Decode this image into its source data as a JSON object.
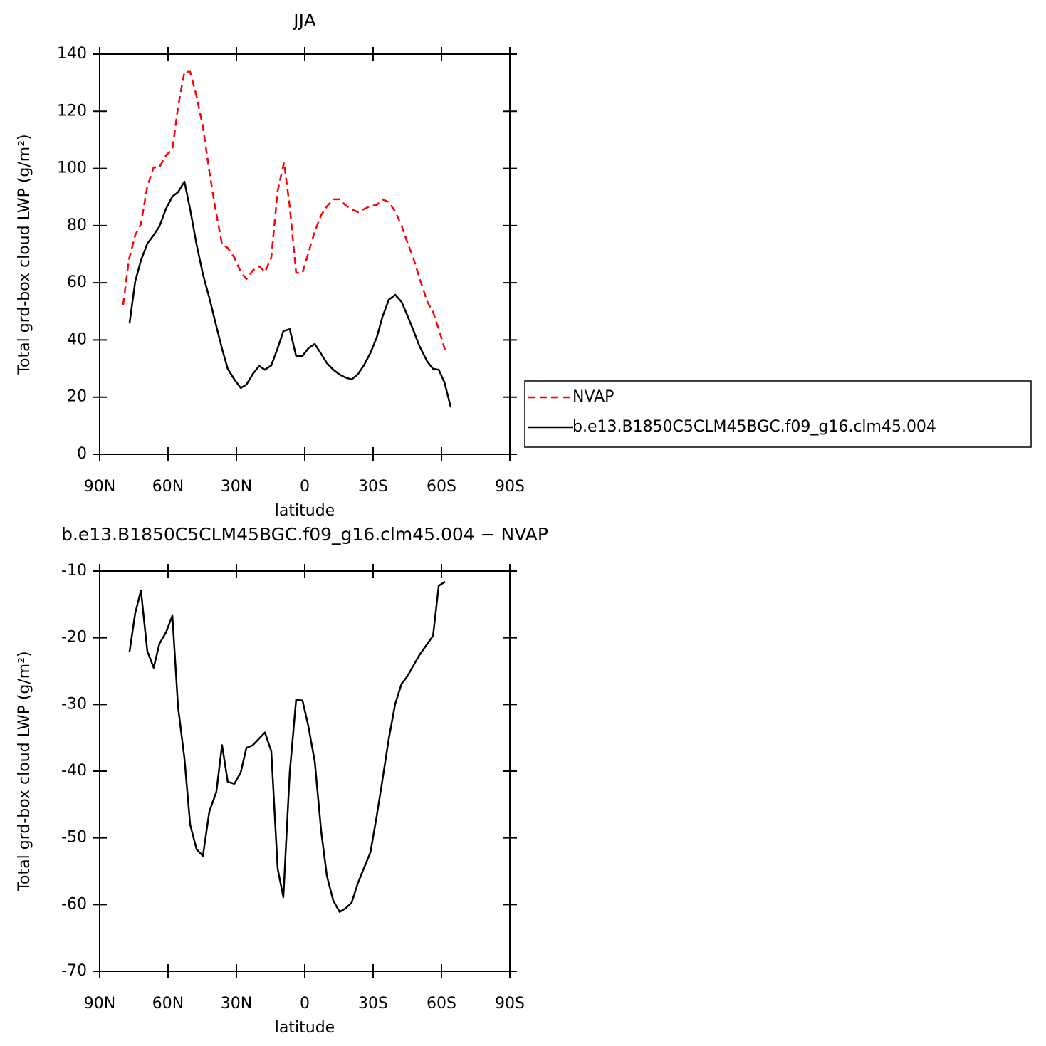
{
  "chart_data": [
    {
      "type": "line",
      "title": "JJA",
      "x_label": "latitude",
      "y_label": "Total grd-box cloud LWP (g/m²)",
      "xlim": [
        90,
        -90
      ],
      "xticks": [
        {
          "value": 90,
          "label": "90N"
        },
        {
          "value": 60,
          "label": "60N"
        },
        {
          "value": 30,
          "label": "30N"
        },
        0,
        {
          "value": -30,
          "label": "30S"
        },
        {
          "value": -60,
          "label": "60S"
        },
        {
          "value": -90,
          "label": "90S"
        }
      ],
      "ylim": [
        0,
        140
      ],
      "yticks": [
        0,
        20,
        40,
        60,
        80,
        100,
        120,
        140
      ],
      "legend": "right",
      "series": [
        {
          "name": "NVAP",
          "color": "#ff0000",
          "dashed": true,
          "x": [
            79.7,
            77.2,
            74.4,
            71.9,
            69.1,
            66.3,
            63.8,
            60.9,
            58.1,
            55.6,
            52.8,
            50.3,
            47.5,
            44.7,
            41.9,
            39.4,
            36.3,
            33.8,
            30.9,
            28.1,
            25.6,
            22.8,
            20.0,
            17.5,
            14.7,
            11.9,
            9.1,
            6.6,
            3.8,
            1.0,
            -1.6,
            -4.4,
            -7.2,
            -9.7,
            -12.5,
            -15.3,
            -17.8,
            -20.6,
            -23.4,
            -25.9,
            -28.8,
            -31.6,
            -34.1,
            -36.9,
            -39.7,
            -42.5,
            -45.0,
            -47.8,
            -50.3,
            -53.8,
            -56.3,
            -58.8,
            -61.6
          ],
          "values": [
            52.3,
            68.0,
            76.7,
            80.5,
            93.7,
            100.4,
            100.4,
            104.6,
            106.6,
            121.6,
            133.8,
            133.8,
            125.3,
            114.6,
            99.1,
            86.7,
            73.5,
            72.2,
            68.8,
            63.8,
            61.3,
            64.3,
            65.8,
            63.8,
            68.8,
            92.2,
            102.1,
            86.7,
            63.5,
            63.5,
            70.5,
            78.0,
            83.7,
            86.7,
            89.2,
            89.2,
            87.2,
            85.7,
            84.7,
            85.7,
            86.9,
            87.2,
            89.2,
            88.2,
            84.9,
            80.0,
            74.2,
            68.3,
            61.8,
            53.3,
            49.8,
            43.8,
            36.4
          ]
        },
        {
          "name": "b.e13.B1850C5CLM45BGC.f09_g16.clm45.004",
          "color": "#000000",
          "dashed": false,
          "x": [
            76.9,
            74.4,
            71.9,
            69.1,
            66.3,
            63.8,
            60.9,
            58.1,
            55.6,
            52.8,
            50.3,
            47.5,
            44.7,
            41.9,
            38.8,
            36.3,
            33.8,
            30.9,
            28.1,
            25.6,
            22.8,
            20.0,
            17.5,
            14.7,
            11.9,
            9.4,
            6.6,
            3.8,
            1.0,
            -1.6,
            -4.4,
            -7.2,
            -9.7,
            -12.5,
            -15.3,
            -17.8,
            -20.6,
            -23.4,
            -25.9,
            -28.8,
            -31.6,
            -34.1,
            -36.9,
            -39.7,
            -42.5,
            -45.0,
            -47.8,
            -50.3,
            -53.8,
            -56.3,
            -58.8,
            -61.3,
            -64.1
          ],
          "values": [
            45.8,
            60.5,
            67.8,
            73.7,
            76.7,
            79.7,
            85.9,
            90.2,
            91.7,
            95.4,
            85.7,
            73.5,
            63.0,
            54.8,
            44.8,
            36.9,
            29.9,
            26.2,
            23.2,
            24.4,
            28.1,
            30.9,
            29.6,
            31.1,
            37.1,
            43.1,
            43.8,
            34.4,
            34.4,
            37.1,
            38.6,
            35.1,
            31.9,
            29.6,
            27.9,
            26.9,
            26.2,
            28.1,
            31.1,
            35.4,
            40.9,
            48.1,
            54.1,
            55.8,
            53.3,
            48.6,
            43.1,
            37.9,
            32.4,
            29.9,
            29.6,
            25.2,
            16.4
          ]
        }
      ]
    },
    {
      "type": "line",
      "title": "b.e13.B1850C5CLM45BGC.f09_g16.clm45.004 − NVAP",
      "x_label": "latitude",
      "y_label": "Total grd-box cloud LWP (g/m²)",
      "xlim": [
        90,
        -90
      ],
      "xticks": [
        {
          "value": 90,
          "label": "90N"
        },
        {
          "value": 60,
          "label": "60N"
        },
        {
          "value": 30,
          "label": "30N"
        },
        0,
        {
          "value": -30,
          "label": "30S"
        },
        {
          "value": -60,
          "label": "60S"
        },
        {
          "value": -90,
          "label": "90S"
        }
      ],
      "ylim": [
        -70,
        -10
      ],
      "yticks": [
        -70,
        -60,
        -50,
        -40,
        -30,
        -20,
        -10
      ],
      "color": "#000000",
      "x": [
        76.9,
        74.4,
        71.9,
        69.1,
        66.3,
        63.8,
        60.9,
        58.1,
        55.6,
        52.8,
        50.3,
        47.5,
        44.7,
        41.9,
        38.8,
        36.3,
        33.8,
        30.9,
        28.1,
        25.6,
        22.8,
        20.0,
        17.5,
        14.7,
        11.9,
        9.4,
        6.6,
        3.8,
        1.0,
        -1.6,
        -4.4,
        -7.2,
        -9.7,
        -12.5,
        -15.3,
        -17.8,
        -20.6,
        -23.4,
        -25.9,
        -28.8,
        -31.6,
        -34.1,
        -36.9,
        -39.7,
        -42.5,
        -45.0,
        -47.8,
        -50.3,
        -53.8,
        -56.3,
        -58.8,
        -61.6
      ],
      "values": [
        -22.1,
        -16.3,
        -12.9,
        -22.0,
        -24.5,
        -20.9,
        -19.2,
        -16.7,
        -30.4,
        -38.1,
        -48.0,
        -51.7,
        -52.7,
        -46.1,
        -43.1,
        -36.1,
        -41.6,
        -41.9,
        -40.2,
        -36.5,
        -36.1,
        -35.1,
        -34.2,
        -37.0,
        -54.6,
        -58.9,
        -40.2,
        -29.3,
        -29.4,
        -33.3,
        -38.6,
        -49.0,
        -55.7,
        -59.4,
        -61.1,
        -60.6,
        -59.7,
        -56.7,
        -54.6,
        -52.2,
        -46.7,
        -41.3,
        -35.1,
        -29.9,
        -26.9,
        -25.8,
        -24.1,
        -22.6,
        -20.9,
        -19.7,
        -12.2,
        -11.6
      ]
    }
  ]
}
